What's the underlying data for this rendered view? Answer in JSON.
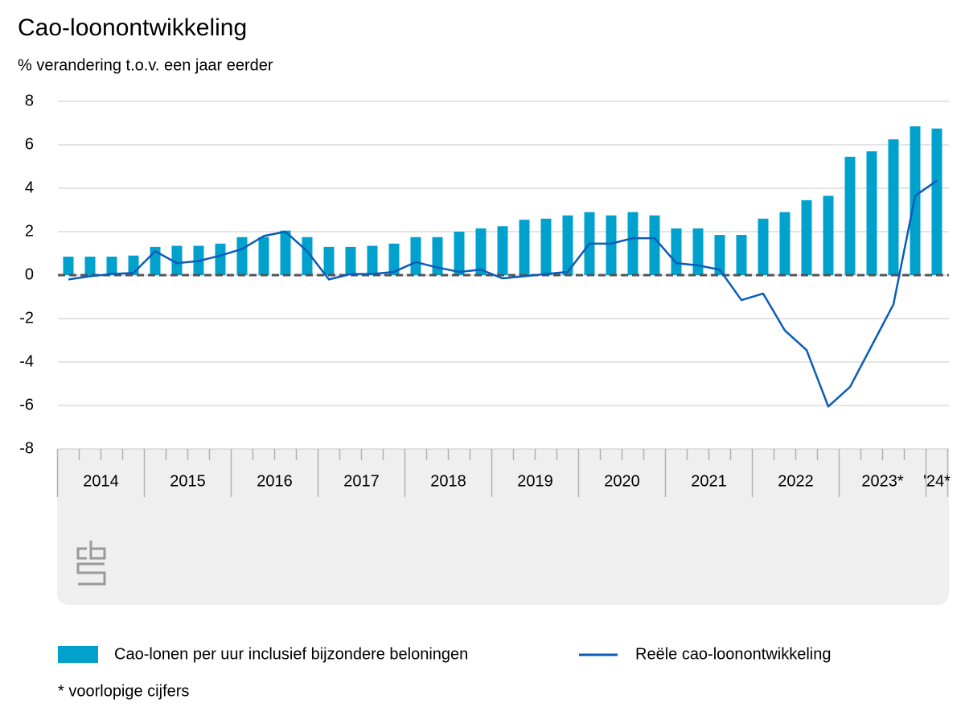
{
  "chart_data": {
    "type": "combo",
    "title": "Cao-loonontwikkeling",
    "subtitle": "% verandering t.o.v. een jaar eerder",
    "footnote": "* voorlopige cijfers",
    "x_groups": [
      "2014",
      "2015",
      "2016",
      "2017",
      "2018",
      "2019",
      "2020",
      "2021",
      "2022",
      "2023*",
      "'24*"
    ],
    "categories": [
      null,
      null,
      null,
      null,
      null,
      null,
      null,
      null,
      null,
      null,
      null,
      null,
      null,
      null,
      null,
      null,
      null,
      null,
      null,
      null,
      null,
      null,
      null,
      null,
      null,
      null,
      null,
      null,
      null,
      null,
      null,
      null,
      null,
      null,
      null,
      null,
      null,
      null,
      null,
      null,
      null
    ],
    "series": [
      {
        "name": "Cao-lonen per uur inclusief bijzondere beloningen",
        "type": "bar",
        "color": "#00a1cd",
        "values": [
          0.85,
          0.85,
          0.85,
          0.9,
          1.3,
          1.35,
          1.35,
          1.45,
          1.75,
          1.75,
          2.05,
          1.75,
          1.3,
          1.3,
          1.35,
          1.45,
          1.75,
          1.75,
          2.0,
          2.15,
          2.25,
          2.55,
          2.6,
          2.75,
          2.9,
          2.75,
          2.9,
          2.75,
          2.15,
          2.15,
          1.85,
          1.85,
          2.6,
          2.9,
          3.45,
          3.65,
          5.45,
          5.7,
          6.25,
          6.85,
          6.75
        ]
      },
      {
        "name": "Reële cao-loonontwikkeling",
        "type": "line",
        "color": "#0a5cb8",
        "values": [
          -0.2,
          -0.05,
          0.05,
          0.1,
          1.1,
          0.55,
          0.65,
          0.9,
          1.2,
          1.8,
          2.0,
          1.1,
          -0.2,
          0.05,
          0.05,
          0.15,
          0.6,
          0.35,
          0.15,
          0.25,
          -0.15,
          -0.05,
          0.05,
          0.15,
          1.45,
          1.45,
          1.7,
          1.7,
          0.55,
          0.45,
          0.25,
          -1.15,
          -0.85,
          -2.55,
          -3.45,
          -6.05,
          -5.15,
          -3.25,
          -1.35,
          3.65,
          4.35
        ]
      }
    ],
    "ylim": [
      -8,
      8
    ],
    "yticks": [
      -8,
      -6,
      -4,
      -2,
      0,
      2,
      4,
      6,
      8
    ],
    "grid": true
  }
}
